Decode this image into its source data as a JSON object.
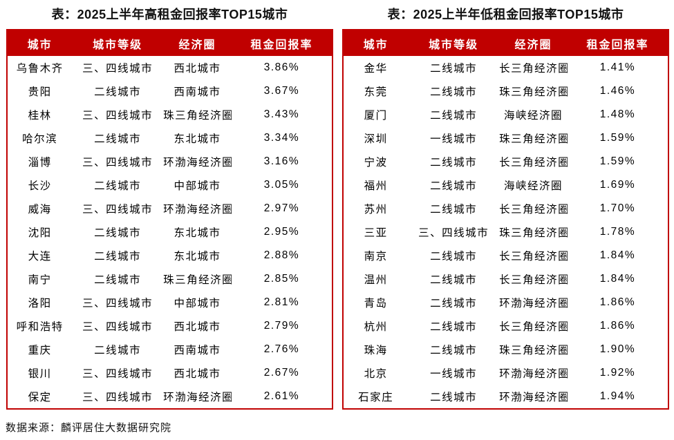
{
  "colors": {
    "header_bg": "#c00000",
    "header_text": "#ffffff",
    "table_border": "#c00000",
    "title_text": "#111111",
    "body_text": "#000000",
    "page_bg": "#ffffff"
  },
  "source_note": "数据来源：麟评居住大数据研究院",
  "tables": [
    {
      "title": "表：2025上半年高租金回报率TOP15城市",
      "headers": [
        "城市",
        "城市等级",
        "经济圈",
        "租金回报率"
      ],
      "rows": [
        [
          "乌鲁木齐",
          "三、四线城市",
          "西北城市",
          "3.86%"
        ],
        [
          "贵阳",
          "二线城市",
          "西南城市",
          "3.67%"
        ],
        [
          "桂林",
          "三、四线城市",
          "珠三角经济圈",
          "3.43%"
        ],
        [
          "哈尔滨",
          "二线城市",
          "东北城市",
          "3.34%"
        ],
        [
          "淄博",
          "三、四线城市",
          "环渤海经济圈",
          "3.16%"
        ],
        [
          "长沙",
          "二线城市",
          "中部城市",
          "3.05%"
        ],
        [
          "威海",
          "三、四线城市",
          "环渤海经济圈",
          "2.97%"
        ],
        [
          "沈阳",
          "二线城市",
          "东北城市",
          "2.95%"
        ],
        [
          "大连",
          "二线城市",
          "东北城市",
          "2.88%"
        ],
        [
          "南宁",
          "二线城市",
          "珠三角经济圈",
          "2.85%"
        ],
        [
          "洛阳",
          "三、四线城市",
          "中部城市",
          "2.81%"
        ],
        [
          "呼和浩特",
          "三、四线城市",
          "西北城市",
          "2.79%"
        ],
        [
          "重庆",
          "二线城市",
          "西南城市",
          "2.76%"
        ],
        [
          "银川",
          "三、四线城市",
          "西北城市",
          "2.67%"
        ],
        [
          "保定",
          "三、四线城市",
          "环渤海经济圈",
          "2.61%"
        ]
      ]
    },
    {
      "title": "表：2025上半年低租金回报率TOP15城市",
      "headers": [
        "城市",
        "城市等级",
        "经济圈",
        "租金回报率"
      ],
      "rows": [
        [
          "金华",
          "二线城市",
          "长三角经济圈",
          "1.41%"
        ],
        [
          "东莞",
          "二线城市",
          "珠三角经济圈",
          "1.46%"
        ],
        [
          "厦门",
          "二线城市",
          "海峡经济圈",
          "1.48%"
        ],
        [
          "深圳",
          "一线城市",
          "珠三角经济圈",
          "1.59%"
        ],
        [
          "宁波",
          "二线城市",
          "长三角经济圈",
          "1.59%"
        ],
        [
          "福州",
          "二线城市",
          "海峡经济圈",
          "1.69%"
        ],
        [
          "苏州",
          "二线城市",
          "长三角经济圈",
          "1.70%"
        ],
        [
          "三亚",
          "三、四线城市",
          "珠三角经济圈",
          "1.78%"
        ],
        [
          "南京",
          "二线城市",
          "长三角经济圈",
          "1.84%"
        ],
        [
          "温州",
          "二线城市",
          "长三角经济圈",
          "1.84%"
        ],
        [
          "青岛",
          "二线城市",
          "环渤海经济圈",
          "1.86%"
        ],
        [
          "杭州",
          "二线城市",
          "长三角经济圈",
          "1.86%"
        ],
        [
          "珠海",
          "二线城市",
          "珠三角经济圈",
          "1.90%"
        ],
        [
          "北京",
          "一线城市",
          "环渤海经济圈",
          "1.92%"
        ],
        [
          "石家庄",
          "二线城市",
          "环渤海经济圈",
          "1.94%"
        ]
      ]
    }
  ]
}
